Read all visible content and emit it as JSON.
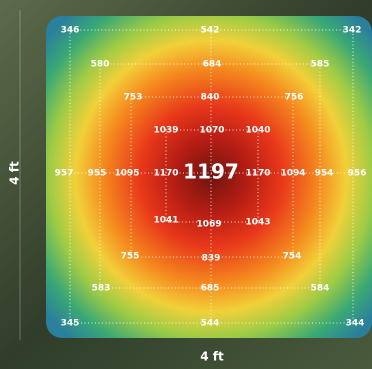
{
  "left_label": "4 ft",
  "bottom_label": "4 ft",
  "center": 1197,
  "rings": [
    {
      "top": [
        346,
        542,
        342
      ],
      "middle": [
        957,
        956
      ],
      "bottom": [
        345,
        544,
        344
      ]
    },
    {
      "top": [
        580,
        684,
        585
      ],
      "middle": [
        955,
        954
      ],
      "bottom": [
        583,
        685,
        584
      ]
    },
    {
      "top": [
        753,
        840,
        756
      ],
      "middle": [
        1095,
        1094
      ],
      "bottom": [
        755,
        839,
        754
      ]
    },
    {
      "top": [
        1039,
        1070,
        1040
      ],
      "middle": [
        1170,
        1170
      ],
      "bottom": [
        1041,
        1069,
        1043
      ]
    }
  ]
}
